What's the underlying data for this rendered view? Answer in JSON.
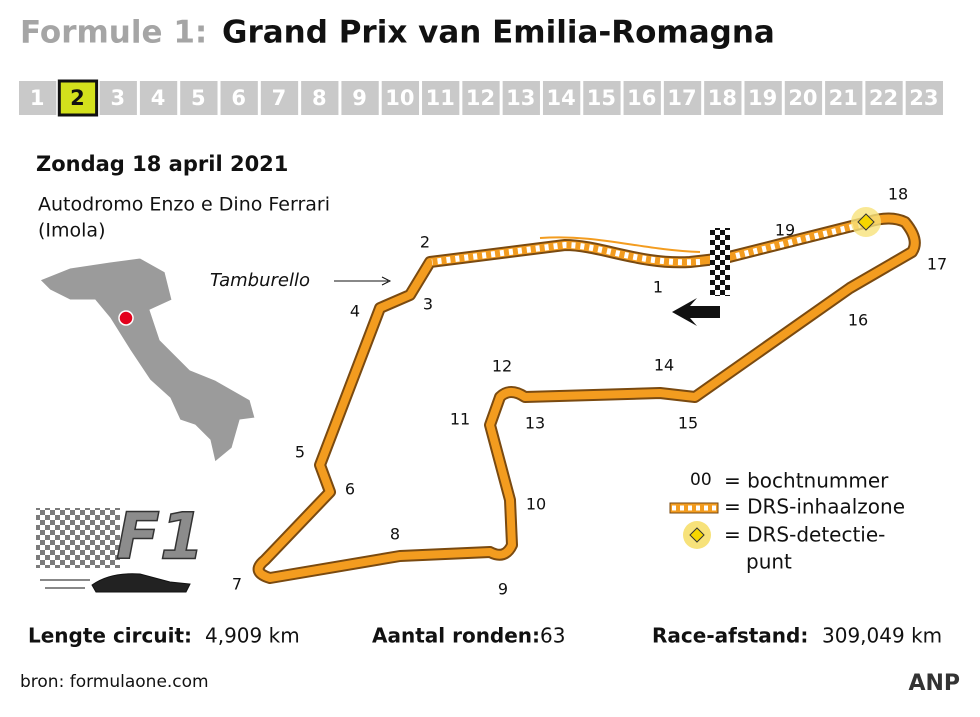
{
  "header": {
    "title_prefix": "Formule 1:",
    "title": "Grand Prix van Emilia-Romagna"
  },
  "races": {
    "items": [
      "1",
      "2",
      "3",
      "4",
      "5",
      "6",
      "7",
      "8",
      "9",
      "10",
      "11",
      "12",
      "13",
      "14",
      "15",
      "16",
      "17",
      "18",
      "19",
      "20",
      "21",
      "22",
      "23"
    ],
    "current": 2
  },
  "date": "Zondag 18 april 2021",
  "venue": [
    "Autodromo Enzo e Dino Ferrari",
    "(Imola)"
  ],
  "corner_name": "Tamburello",
  "turns": [
    "1",
    "2",
    "3",
    "4",
    "5",
    "6",
    "7",
    "8",
    "9",
    "10",
    "11",
    "12",
    "13",
    "14",
    "15",
    "16",
    "17",
    "18",
    "19"
  ],
  "legend": {
    "turn_sample": "00",
    "turn": "= bochtnummer",
    "drs_zone": "= DRS-inhaalzone",
    "drs_detection": [
      "= DRS-detectie-",
      "punt"
    ]
  },
  "logo": "F1",
  "stats": [
    {
      "label": "Lengte circuit:",
      "value": "4,909 km"
    },
    {
      "label": "Aantal ronden:",
      "value": "63"
    },
    {
      "label": "Race-afstand:",
      "value": "309,049 km"
    }
  ],
  "source": "bron: formulaone.com",
  "agency": "ANP"
}
